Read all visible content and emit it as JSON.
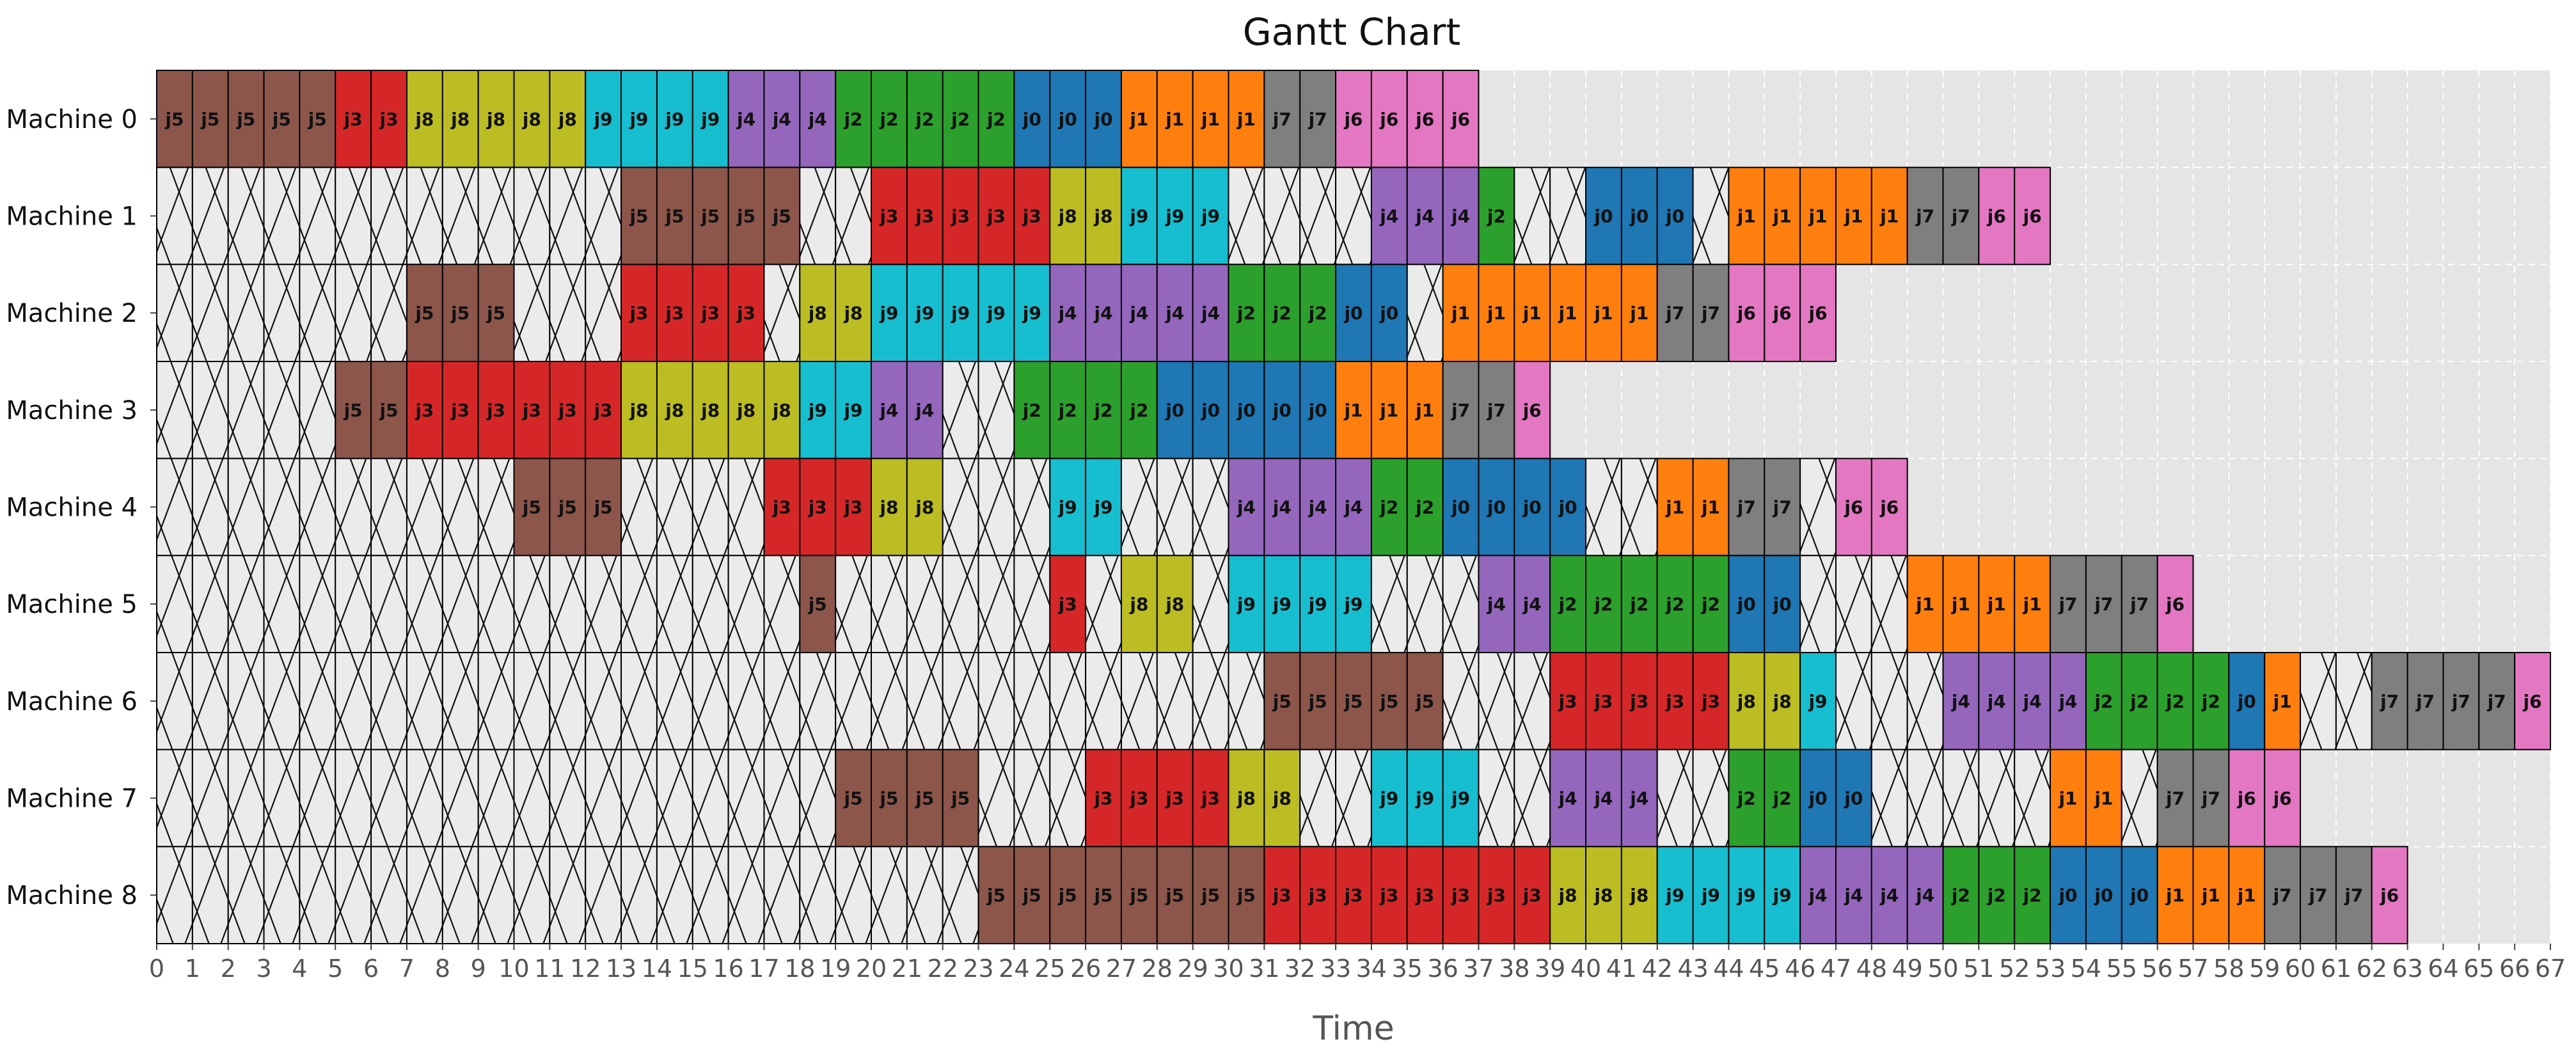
{
  "chart_data": {
    "type": "gantt",
    "title": "Gantt Chart",
    "xlabel": "Time",
    "ylabel": "",
    "xlim": [
      0,
      67
    ],
    "x_ticks": [
      0,
      1,
      2,
      3,
      4,
      5,
      6,
      7,
      8,
      9,
      10,
      11,
      12,
      13,
      14,
      15,
      16,
      17,
      18,
      19,
      20,
      21,
      22,
      23,
      24,
      25,
      26,
      27,
      28,
      29,
      30,
      31,
      32,
      33,
      34,
      35,
      36,
      37,
      38,
      39,
      40,
      41,
      42,
      43,
      44,
      45,
      46,
      47,
      48,
      49,
      50,
      51,
      52,
      53,
      54,
      55,
      56,
      57,
      58,
      59,
      60,
      61,
      62,
      63,
      64,
      65,
      66,
      67
    ],
    "grid": true,
    "idle_pattern": "cross-hatch",
    "job_colors": {
      "j0": "#1f77b4",
      "j1": "#ff7f0e",
      "j2": "#2ca02c",
      "j3": "#d62728",
      "j4": "#9467bd",
      "j5": "#8c564b",
      "j6": "#e377c2",
      "j7": "#7f7f7f",
      "j8": "#bcbd22",
      "j9": "#17becf"
    },
    "machines": [
      {
        "name": "Machine 0",
        "tasks": [
          {
            "job": "j5",
            "start": 0,
            "end": 5
          },
          {
            "job": "j3",
            "start": 5,
            "end": 7
          },
          {
            "job": "j8",
            "start": 7,
            "end": 12
          },
          {
            "job": "j9",
            "start": 12,
            "end": 16
          },
          {
            "job": "j4",
            "start": 16,
            "end": 19
          },
          {
            "job": "j2",
            "start": 19,
            "end": 24
          },
          {
            "job": "j0",
            "start": 24,
            "end": 27
          },
          {
            "job": "j1",
            "start": 27,
            "end": 31
          },
          {
            "job": "j7",
            "start": 31,
            "end": 33
          },
          {
            "job": "j6",
            "start": 33,
            "end": 37
          }
        ]
      },
      {
        "name": "Machine 1",
        "tasks": [
          {
            "job": "j5",
            "start": 13,
            "end": 18
          },
          {
            "job": "j3",
            "start": 20,
            "end": 25
          },
          {
            "job": "j8",
            "start": 25,
            "end": 27
          },
          {
            "job": "j9",
            "start": 27,
            "end": 30
          },
          {
            "job": "j4",
            "start": 34,
            "end": 37
          },
          {
            "job": "j2",
            "start": 37,
            "end": 38
          },
          {
            "job": "j0",
            "start": 40,
            "end": 43
          },
          {
            "job": "j1",
            "start": 44,
            "end": 49
          },
          {
            "job": "j7",
            "start": 49,
            "end": 51
          },
          {
            "job": "j6",
            "start": 51,
            "end": 53
          }
        ]
      },
      {
        "name": "Machine 2",
        "tasks": [
          {
            "job": "j5",
            "start": 7,
            "end": 10
          },
          {
            "job": "j3",
            "start": 13,
            "end": 17
          },
          {
            "job": "j8",
            "start": 18,
            "end": 20
          },
          {
            "job": "j9",
            "start": 20,
            "end": 25
          },
          {
            "job": "j4",
            "start": 25,
            "end": 30
          },
          {
            "job": "j2",
            "start": 30,
            "end": 33
          },
          {
            "job": "j0",
            "start": 33,
            "end": 35
          },
          {
            "job": "j1",
            "start": 36,
            "end": 42
          },
          {
            "job": "j7",
            "start": 42,
            "end": 44
          },
          {
            "job": "j6",
            "start": 44,
            "end": 47
          }
        ]
      },
      {
        "name": "Machine 3",
        "tasks": [
          {
            "job": "j5",
            "start": 5,
            "end": 7
          },
          {
            "job": "j3",
            "start": 7,
            "end": 13
          },
          {
            "job": "j8",
            "start": 13,
            "end": 18
          },
          {
            "job": "j9",
            "start": 18,
            "end": 20
          },
          {
            "job": "j4",
            "start": 20,
            "end": 22
          },
          {
            "job": "j2",
            "start": 24,
            "end": 28
          },
          {
            "job": "j0",
            "start": 28,
            "end": 33
          },
          {
            "job": "j1",
            "start": 33,
            "end": 36
          },
          {
            "job": "j7",
            "start": 36,
            "end": 38
          },
          {
            "job": "j6",
            "start": 38,
            "end": 39
          }
        ]
      },
      {
        "name": "Machine 4",
        "tasks": [
          {
            "job": "j5",
            "start": 10,
            "end": 13
          },
          {
            "job": "j3",
            "start": 17,
            "end": 20
          },
          {
            "job": "j8",
            "start": 20,
            "end": 22
          },
          {
            "job": "j9",
            "start": 25,
            "end": 27
          },
          {
            "job": "j4",
            "start": 30,
            "end": 34
          },
          {
            "job": "j2",
            "start": 34,
            "end": 36
          },
          {
            "job": "j0",
            "start": 36,
            "end": 40
          },
          {
            "job": "j1",
            "start": 42,
            "end": 44
          },
          {
            "job": "j7",
            "start": 44,
            "end": 46
          },
          {
            "job": "j6",
            "start": 47,
            "end": 49
          }
        ]
      },
      {
        "name": "Machine 5",
        "tasks": [
          {
            "job": "j5",
            "start": 18,
            "end": 19
          },
          {
            "job": "j3",
            "start": 25,
            "end": 26
          },
          {
            "job": "j8",
            "start": 27,
            "end": 29
          },
          {
            "job": "j9",
            "start": 30,
            "end": 34
          },
          {
            "job": "j4",
            "start": 37,
            "end": 39
          },
          {
            "job": "j2",
            "start": 39,
            "end": 44
          },
          {
            "job": "j0",
            "start": 44,
            "end": 46
          },
          {
            "job": "j1",
            "start": 49,
            "end": 53
          },
          {
            "job": "j7",
            "start": 53,
            "end": 56
          },
          {
            "job": "j6",
            "start": 56,
            "end": 57
          }
        ]
      },
      {
        "name": "Machine 6",
        "tasks": [
          {
            "job": "j5",
            "start": 31,
            "end": 36
          },
          {
            "job": "j3",
            "start": 39,
            "end": 44
          },
          {
            "job": "j8",
            "start": 44,
            "end": 46
          },
          {
            "job": "j9",
            "start": 46,
            "end": 47
          },
          {
            "job": "j4",
            "start": 50,
            "end": 54
          },
          {
            "job": "j2",
            "start": 54,
            "end": 58
          },
          {
            "job": "j0",
            "start": 58,
            "end": 59
          },
          {
            "job": "j1",
            "start": 59,
            "end": 60
          },
          {
            "job": "j7",
            "start": 62,
            "end": 66
          },
          {
            "job": "j6",
            "start": 66,
            "end": 67
          }
        ]
      },
      {
        "name": "Machine 7",
        "tasks": [
          {
            "job": "j5",
            "start": 19,
            "end": 23
          },
          {
            "job": "j3",
            "start": 26,
            "end": 30
          },
          {
            "job": "j8",
            "start": 30,
            "end": 32
          },
          {
            "job": "j9",
            "start": 34,
            "end": 37
          },
          {
            "job": "j4",
            "start": 39,
            "end": 42
          },
          {
            "job": "j2",
            "start": 44,
            "end": 46
          },
          {
            "job": "j0",
            "start": 46,
            "end": 48
          },
          {
            "job": "j1",
            "start": 53,
            "end": 55
          },
          {
            "job": "j7",
            "start": 56,
            "end": 58
          },
          {
            "job": "j6",
            "start": 58,
            "end": 60
          }
        ]
      },
      {
        "name": "Machine 8",
        "tasks": [
          {
            "job": "j5",
            "start": 23,
            "end": 31
          },
          {
            "job": "j3",
            "start": 31,
            "end": 39
          },
          {
            "job": "j8",
            "start": 39,
            "end": 42
          },
          {
            "job": "j9",
            "start": 42,
            "end": 46
          },
          {
            "job": "j4",
            "start": 46,
            "end": 50
          },
          {
            "job": "j2",
            "start": 50,
            "end": 53
          },
          {
            "job": "j0",
            "start": 53,
            "end": 56
          },
          {
            "job": "j1",
            "start": 56,
            "end": 59
          },
          {
            "job": "j7",
            "start": 59,
            "end": 62
          },
          {
            "job": "j6",
            "start": 62,
            "end": 63
          }
        ]
      }
    ]
  }
}
